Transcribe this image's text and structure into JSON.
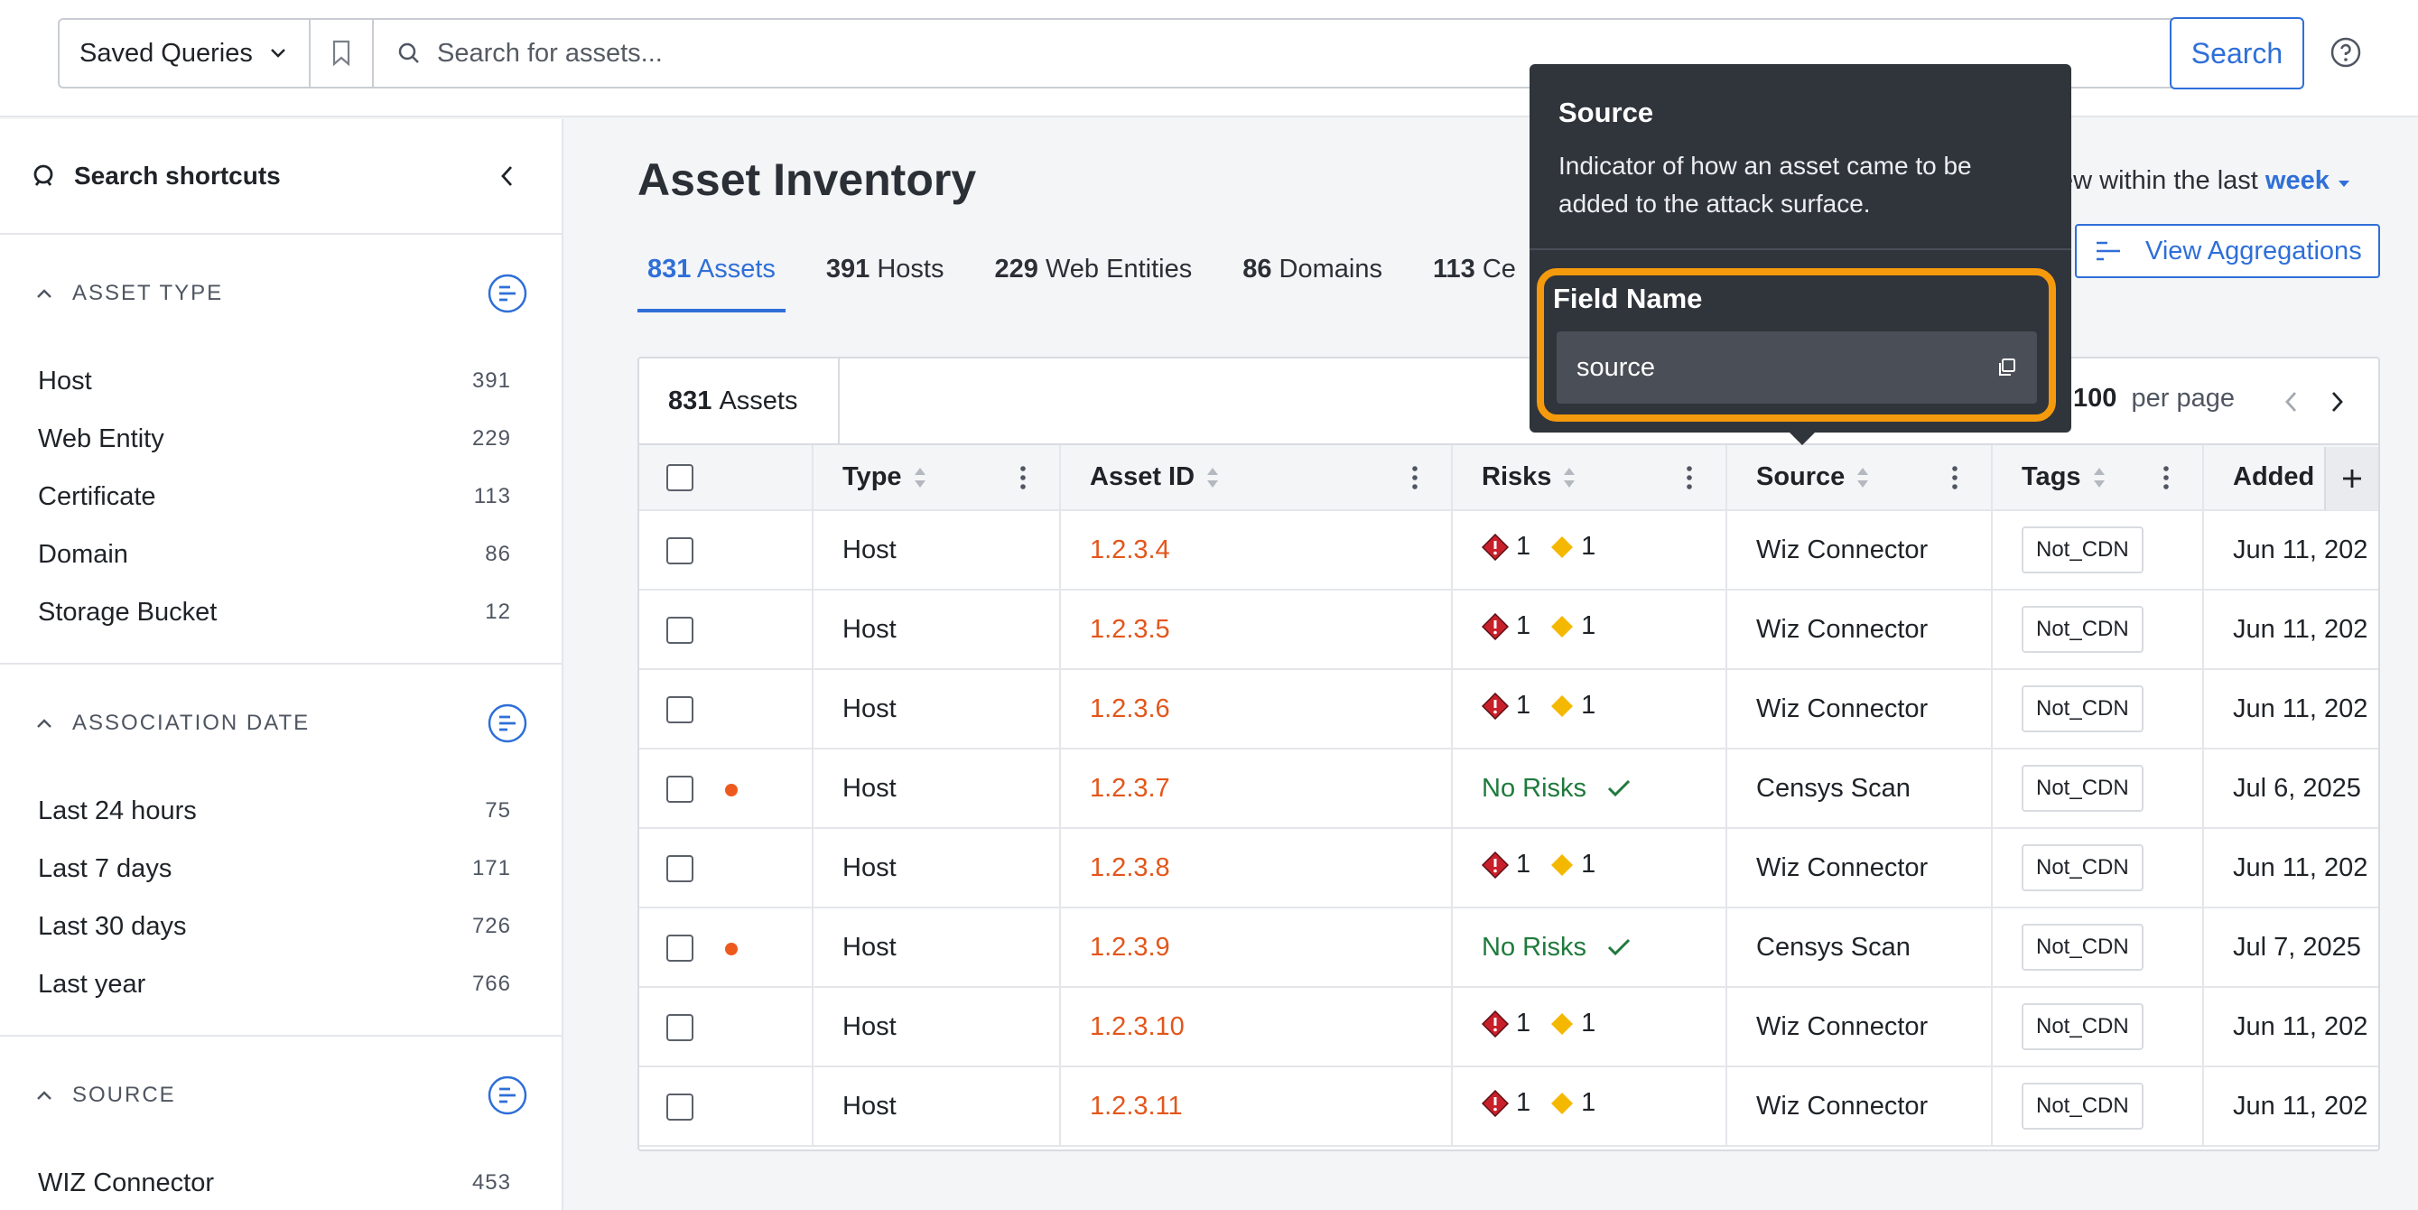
{
  "topbar": {
    "saved_queries_label": "Saved Queries",
    "search_placeholder": "Search for assets...",
    "search_button": "Search"
  },
  "sidebar": {
    "title": "Search shortcuts",
    "sections": [
      {
        "label": "ASSET TYPE",
        "items": [
          {
            "label": "Host",
            "count": "391"
          },
          {
            "label": "Web Entity",
            "count": "229"
          },
          {
            "label": "Certificate",
            "count": "113"
          },
          {
            "label": "Domain",
            "count": "86"
          },
          {
            "label": "Storage Bucket",
            "count": "12"
          }
        ]
      },
      {
        "label": "ASSOCIATION DATE",
        "items": [
          {
            "label": "Last 24 hours",
            "count": "75"
          },
          {
            "label": "Last 7 days",
            "count": "171"
          },
          {
            "label": "Last 30 days",
            "count": "726"
          },
          {
            "label": "Last year",
            "count": "766"
          }
        ]
      },
      {
        "label": "SOURCE",
        "items": [
          {
            "label": "WIZ Connector",
            "count": "453"
          }
        ]
      }
    ]
  },
  "main": {
    "title": "Asset Inventory",
    "view_within_prefix": "ew within the last",
    "view_within_value": "week",
    "view_aggregations": "View Aggregations",
    "tabs": [
      {
        "count": "831",
        "label": "Assets",
        "active": true
      },
      {
        "count": "391",
        "label": "Hosts"
      },
      {
        "count": "229",
        "label": "Web Entities"
      },
      {
        "count": "86",
        "label": "Domains"
      },
      {
        "count": "113",
        "label": "Ce"
      }
    ]
  },
  "table": {
    "count_number": "831",
    "count_label": "Assets",
    "per_page_number": "100",
    "per_page_label": "per page",
    "columns": [
      "Type",
      "Asset ID",
      "Risks",
      "Source",
      "Tags",
      "Added"
    ],
    "rows": [
      {
        "type": "Host",
        "asset_id": "1.2.3.4",
        "critical": "1",
        "medium": "1",
        "no_risks": false,
        "source": "Wiz Connector",
        "tag": "Not_CDN",
        "added": "Jun 11, 202",
        "new": false
      },
      {
        "type": "Host",
        "asset_id": "1.2.3.5",
        "critical": "1",
        "medium": "1",
        "no_risks": false,
        "source": "Wiz Connector",
        "tag": "Not_CDN",
        "added": "Jun 11, 202",
        "new": false
      },
      {
        "type": "Host",
        "asset_id": "1.2.3.6",
        "critical": "1",
        "medium": "1",
        "no_risks": false,
        "source": "Wiz Connector",
        "tag": "Not_CDN",
        "added": "Jun 11, 202",
        "new": false
      },
      {
        "type": "Host",
        "asset_id": "1.2.3.7",
        "no_risks": true,
        "no_risks_label": "No Risks",
        "source": "Censys Scan",
        "tag": "Not_CDN",
        "added": "Jul 6, 2025",
        "new": true
      },
      {
        "type": "Host",
        "asset_id": "1.2.3.8",
        "critical": "1",
        "medium": "1",
        "no_risks": false,
        "source": "Wiz Connector",
        "tag": "Not_CDN",
        "added": "Jun 11, 202",
        "new": false
      },
      {
        "type": "Host",
        "asset_id": "1.2.3.9",
        "no_risks": true,
        "no_risks_label": "No Risks",
        "source": "Censys Scan",
        "tag": "Not_CDN",
        "added": "Jul 7, 2025",
        "new": true
      },
      {
        "type": "Host",
        "asset_id": "1.2.3.10",
        "critical": "1",
        "medium": "1",
        "no_risks": false,
        "source": "Wiz Connector",
        "tag": "Not_CDN",
        "added": "Jun 11, 202",
        "new": false
      },
      {
        "type": "Host",
        "asset_id": "1.2.3.11",
        "critical": "1",
        "medium": "1",
        "no_risks": false,
        "source": "Wiz Connector",
        "tag": "Not_CDN",
        "added": "Jun 11, 202",
        "new": false
      }
    ]
  },
  "tooltip": {
    "title": "Source",
    "description": "Indicator of how an asset came to be added to the attack surface.",
    "field_label": "Field Name",
    "field_value": "source"
  },
  "colors": {
    "accent": "#2f6fd8",
    "asset_id": "#e3561b",
    "no_risks": "#1f7a3c",
    "critical": "#c8202a",
    "medium": "#f5b800",
    "highlight": "#f59a0c"
  }
}
